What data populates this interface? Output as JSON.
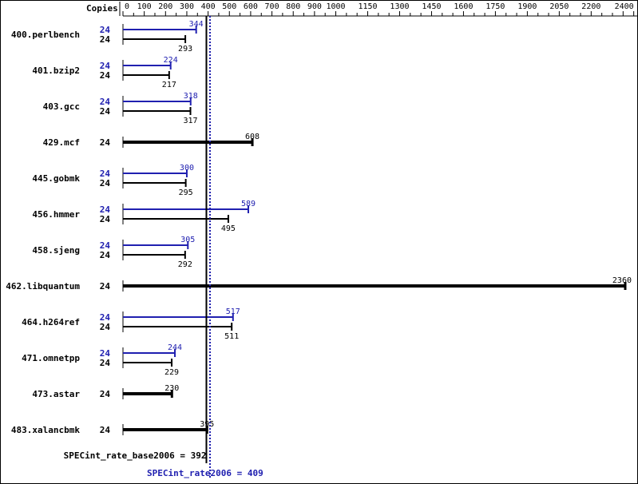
{
  "chart_data": {
    "type": "bar",
    "orientation": "horizontal",
    "column_header": "Copies",
    "xlim": [
      0,
      2400
    ],
    "x_ticks": [
      0,
      100,
      200,
      300,
      400,
      500,
      600,
      700,
      800,
      900,
      1000,
      1150,
      1300,
      1450,
      1600,
      1750,
      1900,
      2050,
      2200,
      2400
    ],
    "colors": {
      "base": "#000000",
      "peak": "#2020b0"
    },
    "benchmarks": [
      {
        "name": "400.perlbench",
        "base_copies": "24",
        "base": 293,
        "peak_copies": "24",
        "peak": 344
      },
      {
        "name": "401.bzip2",
        "base_copies": "24",
        "base": 217,
        "peak_copies": "24",
        "peak": 224
      },
      {
        "name": "403.gcc",
        "base_copies": "24",
        "base": 317,
        "peak_copies": "24",
        "peak": 318
      },
      {
        "name": "429.mcf",
        "base_copies": "24",
        "base": 608,
        "peak_copies": null,
        "peak": null
      },
      {
        "name": "445.gobmk",
        "base_copies": "24",
        "base": 295,
        "peak_copies": "24",
        "peak": 300
      },
      {
        "name": "456.hmmer",
        "base_copies": "24",
        "base": 495,
        "peak_copies": "24",
        "peak": 589
      },
      {
        "name": "458.sjeng",
        "base_copies": "24",
        "base": 292,
        "peak_copies": "24",
        "peak": 305
      },
      {
        "name": "462.libquantum",
        "base_copies": "24",
        "base": 2360,
        "peak_copies": null,
        "peak": null
      },
      {
        "name": "464.h264ref",
        "base_copies": "24",
        "base": 511,
        "peak_copies": "24",
        "peak": 517
      },
      {
        "name": "471.omnetpp",
        "base_copies": "24",
        "base": 229,
        "peak_copies": "24",
        "peak": 244
      },
      {
        "name": "473.astar",
        "base_copies": "24",
        "base": 230,
        "peak_copies": null,
        "peak": null
      },
      {
        "name": "483.xalancbmk",
        "base_copies": "24",
        "base": 395,
        "peak_copies": null,
        "peak": null
      }
    ],
    "base_mean": {
      "label": "SPECint_rate_base2006 = 392",
      "value": 392
    },
    "peak_mean": {
      "label": "SPECint_rate2006 = 409",
      "value": 409
    }
  }
}
